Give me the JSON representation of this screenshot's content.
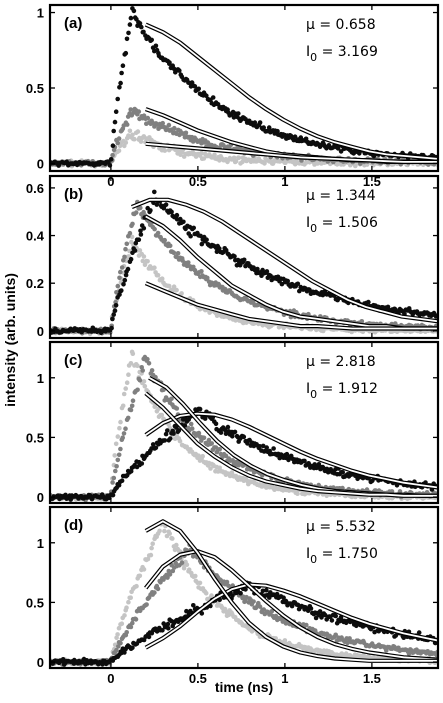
{
  "xlabel": "time (ns)",
  "ylabel": "intensity (arb. units)",
  "chart_data": [
    {
      "type": "scatter",
      "panel_label": "(a)",
      "mu_text": "μ = 0.658",
      "i0_prefix": "I",
      "i0_sub": "0",
      "i0_value": " = 3.169",
      "xlim": [
        -0.35,
        1.88
      ],
      "ylim": [
        -0.05,
        1.05
      ],
      "xticks": [
        0,
        0.5,
        1,
        1.5
      ],
      "xticklabels": [
        "0",
        "0.5",
        "1",
        "1.5"
      ],
      "yticks": [
        0,
        0.5,
        1
      ],
      "yticklabels": [
        "0",
        "0.5",
        "1"
      ],
      "series": [
        {
          "shade": "black",
          "color": "#0d0d0d",
          "peak_time": 0.12,
          "peak": 1.0,
          "decay": 0.52,
          "fit_x": [
            0.2,
            1.88
          ],
          "fit_y": [
            0.92,
            0.87,
            0.8,
            0.71,
            0.62,
            0.53,
            0.44,
            0.36,
            0.29,
            0.23,
            0.18,
            0.14,
            0.11,
            0.08,
            0.06,
            0.05,
            0.04,
            0.03
          ]
        },
        {
          "shade": "dark-gray",
          "color": "#808080",
          "peak_time": 0.12,
          "peak": 0.36,
          "decay": 0.45,
          "fit_x": [
            0.2,
            1.88
          ],
          "fit_y": [
            0.36,
            0.32,
            0.27,
            0.22,
            0.18,
            0.14,
            0.11,
            0.08,
            0.06,
            0.05,
            0.04,
            0.03,
            0.02,
            0.02,
            0.01,
            0.01,
            0.01,
            0.01
          ]
        },
        {
          "shade": "light-gray",
          "color": "#c4c4c4",
          "peak_time": 0.12,
          "peak": 0.2,
          "decay": 0.3,
          "fit_x": [
            0.2,
            1.88
          ],
          "fit_y": [
            0.13,
            0.12,
            0.11,
            0.1,
            0.09,
            0.08,
            0.07,
            0.06,
            0.05,
            0.04,
            0.035,
            0.03,
            0.025,
            0.02,
            0.015,
            0.01,
            0.01,
            0.01
          ]
        }
      ]
    },
    {
      "type": "scatter",
      "panel_label": "(b)",
      "mu_text": "μ = 1.344",
      "i0_prefix": "I",
      "i0_sub": "0",
      "i0_value": " = 1.506",
      "xlim": [
        -0.35,
        1.88
      ],
      "ylim": [
        -0.03,
        0.65
      ],
      "xticks": [
        0,
        0.5,
        1,
        1.5
      ],
      "xticklabels": [
        "",
        "",
        "",
        ""
      ],
      "yticks": [
        0,
        0.2,
        0.4,
        0.6
      ],
      "yticklabels": [
        "0",
        "0.2",
        "0.4",
        "0.6"
      ],
      "series": [
        {
          "shade": "black",
          "color": "#0d0d0d",
          "peak_time": 0.25,
          "peak": 0.56,
          "decay": 0.75,
          "fit_x": [
            0.12,
            1.88
          ],
          "fit_y": [
            0.52,
            0.55,
            0.55,
            0.53,
            0.5,
            0.46,
            0.41,
            0.36,
            0.31,
            0.26,
            0.21,
            0.17,
            0.13,
            0.1,
            0.08,
            0.06,
            0.05,
            0.04
          ]
        },
        {
          "shade": "dark-gray",
          "color": "#808080",
          "peak_time": 0.15,
          "peak": 0.53,
          "decay": 0.45,
          "fit_x": [
            0.2,
            1.88
          ],
          "fit_y": [
            0.48,
            0.44,
            0.38,
            0.31,
            0.25,
            0.19,
            0.15,
            0.11,
            0.08,
            0.06,
            0.05,
            0.04,
            0.03,
            0.02,
            0.02,
            0.01,
            0.01,
            0.01
          ]
        },
        {
          "shade": "light-gray",
          "color": "#c4c4c4",
          "peak_time": 0.12,
          "peak": 0.38,
          "decay": 0.3,
          "fit_x": [
            0.2,
            1.88
          ],
          "fit_y": [
            0.2,
            0.17,
            0.14,
            0.11,
            0.09,
            0.07,
            0.05,
            0.04,
            0.03,
            0.02,
            0.02,
            0.015,
            0.01,
            0.01,
            0.01,
            0.01,
            0.01,
            0.01
          ]
        }
      ]
    },
    {
      "type": "scatter",
      "panel_label": "(c)",
      "mu_text": "μ = 2.818",
      "i0_prefix": "I",
      "i0_sub": "0",
      "i0_value": " = 1.912",
      "xlim": [
        -0.35,
        1.88
      ],
      "ylim": [
        -0.05,
        1.3
      ],
      "xticks": [
        0,
        0.5,
        1,
        1.5
      ],
      "xticklabels": [
        "",
        "",
        "",
        ""
      ],
      "yticks": [
        0,
        0.5,
        1
      ],
      "yticklabels": [
        "0",
        "0.5",
        "1"
      ],
      "series": [
        {
          "shade": "black",
          "color": "#0d0d0d",
          "peak_time": 0.5,
          "peak": 0.72,
          "decay": 0.65,
          "fit_x": [
            0.2,
            1.88
          ],
          "fit_y": [
            0.52,
            0.62,
            0.68,
            0.7,
            0.69,
            0.65,
            0.59,
            0.52,
            0.45,
            0.38,
            0.32,
            0.27,
            0.22,
            0.18,
            0.15,
            0.12,
            0.1,
            0.08
          ]
        },
        {
          "shade": "dark-gray",
          "color": "#808080",
          "peak_time": 0.2,
          "peak": 1.15,
          "decay": 0.38,
          "fit_x": [
            0.22,
            1.88
          ],
          "fit_y": [
            1.0,
            0.92,
            0.78,
            0.62,
            0.47,
            0.35,
            0.26,
            0.19,
            0.14,
            0.1,
            0.07,
            0.05,
            0.04,
            0.03,
            0.02,
            0.02,
            0.01,
            0.01
          ]
        },
        {
          "shade": "light-gray",
          "color": "#c4c4c4",
          "peak_time": 0.12,
          "peak": 1.2,
          "decay": 0.3,
          "fit_x": [
            0.2,
            1.88
          ],
          "fit_y": [
            0.87,
            0.75,
            0.6,
            0.45,
            0.34,
            0.25,
            0.18,
            0.13,
            0.1,
            0.07,
            0.05,
            0.04,
            0.03,
            0.02,
            0.02,
            0.01,
            0.01,
            0.01
          ]
        }
      ]
    },
    {
      "type": "scatter",
      "panel_label": "(d)",
      "mu_text": "μ = 5.532",
      "i0_prefix": "I",
      "i0_sub": "0",
      "i0_value": " = 1.750",
      "xlim": [
        -0.35,
        1.88
      ],
      "ylim": [
        -0.05,
        1.3
      ],
      "xticks": [
        0,
        0.5,
        1,
        1.5
      ],
      "xticklabels": [
        "0",
        "0.5",
        "1",
        "1.5"
      ],
      "yticks": [
        0,
        0.5,
        1
      ],
      "yticklabels": [
        "0",
        "0.5",
        "1"
      ],
      "series": [
        {
          "shade": "black",
          "color": "#0d0d0d",
          "peak_time": 0.8,
          "peak": 0.65,
          "decay": 0.85,
          "fit_x": [
            0.2,
            1.88
          ],
          "fit_y": [
            0.12,
            0.2,
            0.3,
            0.42,
            0.53,
            0.61,
            0.65,
            0.64,
            0.6,
            0.55,
            0.49,
            0.43,
            0.37,
            0.32,
            0.28,
            0.24,
            0.21,
            0.18
          ]
        },
        {
          "shade": "dark-gray",
          "color": "#808080",
          "peak_time": 0.45,
          "peak": 0.95,
          "decay": 0.55,
          "fit_x": [
            0.2,
            1.88
          ],
          "fit_y": [
            0.62,
            0.8,
            0.9,
            0.93,
            0.88,
            0.77,
            0.64,
            0.51,
            0.39,
            0.29,
            0.21,
            0.15,
            0.11,
            0.08,
            0.06,
            0.04,
            0.03,
            0.02
          ]
        },
        {
          "shade": "light-gray",
          "color": "#c4c4c4",
          "peak_time": 0.3,
          "peak": 1.18,
          "decay": 0.35,
          "fit_x": [
            0.2,
            1.88
          ],
          "fit_y": [
            1.1,
            1.18,
            1.1,
            0.92,
            0.7,
            0.5,
            0.33,
            0.21,
            0.13,
            0.08,
            0.05,
            0.03,
            0.02,
            0.01,
            0.01,
            0.01,
            0.01,
            0.01
          ]
        }
      ]
    }
  ]
}
